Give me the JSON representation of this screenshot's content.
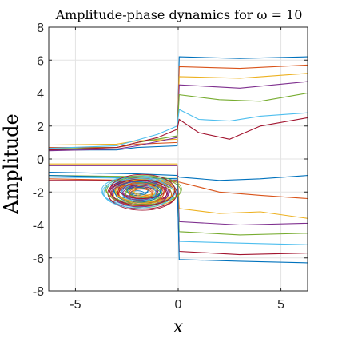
{
  "chart_data": {
    "type": "line",
    "title": "Amplitude-phase dynamics for ω = 10",
    "xlabel": "x",
    "ylabel": "Amplitude",
    "xlim": [
      -6.3,
      6.3
    ],
    "ylim": [
      -8,
      8
    ],
    "xticks": [
      -5,
      0,
      5
    ],
    "yticks": [
      -8,
      -6,
      -4,
      -2,
      0,
      2,
      4,
      6,
      8
    ],
    "grid": true,
    "legend": "none",
    "series_colors": [
      "#0072BD",
      "#D95319",
      "#EDB120",
      "#7E2F8E",
      "#77AC30",
      "#4DBEEE",
      "#A2142F"
    ],
    "series": [
      {
        "x": [
          -6.3,
          -3,
          -2,
          -0.05,
          0.05,
          3,
          6.3
        ],
        "y": [
          0.55,
          0.55,
          0.7,
          0.8,
          6.2,
          6.1,
          6.2
        ]
      },
      {
        "x": [
          -6.3,
          -3,
          -2,
          -0.05,
          0.05,
          3,
          6.3
        ],
        "y": [
          0.7,
          0.7,
          0.9,
          1.0,
          5.6,
          5.5,
          5.7
        ]
      },
      {
        "x": [
          -6.3,
          -3,
          -2,
          -0.05,
          0.05,
          3,
          6.3
        ],
        "y": [
          0.85,
          0.9,
          1.1,
          1.2,
          5.0,
          4.9,
          5.2
        ]
      },
      {
        "x": [
          -6.3,
          -3,
          -2,
          -0.05,
          0.05,
          3,
          6.3
        ],
        "y": [
          0.5,
          0.6,
          0.8,
          1.3,
          4.5,
          4.3,
          4.7
        ]
      },
      {
        "x": [
          -6.3,
          -3,
          -2,
          -0.05,
          0.05,
          2,
          4,
          6.3
        ],
        "y": [
          0.6,
          0.7,
          1.0,
          1.4,
          3.9,
          3.6,
          3.5,
          4.0
        ]
      },
      {
        "x": [
          -6.3,
          -3,
          -1,
          -0.05,
          0.05,
          1,
          2.5,
          4,
          6.3
        ],
        "y": [
          0.65,
          0.8,
          1.5,
          2.0,
          3.0,
          2.4,
          2.3,
          2.6,
          2.8
        ]
      },
      {
        "x": [
          -6.3,
          -3,
          -1,
          -0.05,
          0.05,
          1,
          2.5,
          4,
          6.3
        ],
        "y": [
          0.55,
          0.7,
          1.3,
          1.8,
          2.4,
          1.6,
          1.2,
          2.0,
          2.5
        ]
      },
      {
        "x": [
          -6.3,
          -2,
          -0.05,
          0.05,
          2,
          4,
          6.3
        ],
        "y": [
          -0.8,
          -0.9,
          -1.0,
          -1.1,
          -1.3,
          -1.2,
          -1.0
        ]
      },
      {
        "x": [
          -6.3,
          -2,
          -0.05,
          0.05,
          2,
          4,
          6.3
        ],
        "y": [
          -1.2,
          -1.3,
          -1.4,
          -1.4,
          -2.0,
          -2.2,
          -2.4
        ]
      },
      {
        "x": [
          -6.3,
          -0.05,
          0.05,
          2,
          4,
          6.3
        ],
        "y": [
          -0.3,
          -0.3,
          -3.0,
          -3.3,
          -3.2,
          -3.6
        ]
      },
      {
        "x": [
          -6.3,
          -0.05,
          0.05,
          3,
          6.3
        ],
        "y": [
          -0.4,
          -0.4,
          -3.8,
          -4.0,
          -3.9
        ]
      },
      {
        "x": [
          -6.3,
          -0.05,
          0.05,
          3,
          6.3
        ],
        "y": [
          -1.0,
          -1.1,
          -4.4,
          -4.6,
          -4.5
        ]
      },
      {
        "x": [
          -6.3,
          -0.05,
          0.05,
          3,
          6.3
        ],
        "y": [
          -1.1,
          -1.2,
          -5.0,
          -5.1,
          -5.2
        ]
      },
      {
        "x": [
          -6.3,
          -0.05,
          0.05,
          3,
          6.3
        ],
        "y": [
          -1.3,
          -1.3,
          -5.6,
          -5.8,
          -5.7
        ]
      },
      {
        "x": [
          -6.3,
          -0.05,
          0.05,
          3,
          6.3
        ],
        "y": [
          -1.0,
          -1.2,
          -6.1,
          -6.2,
          -6.3
        ]
      }
    ],
    "cluster": {
      "center": [
        -1.8,
        -2.0
      ],
      "rx": 1.8,
      "ry": 0.95
    }
  }
}
